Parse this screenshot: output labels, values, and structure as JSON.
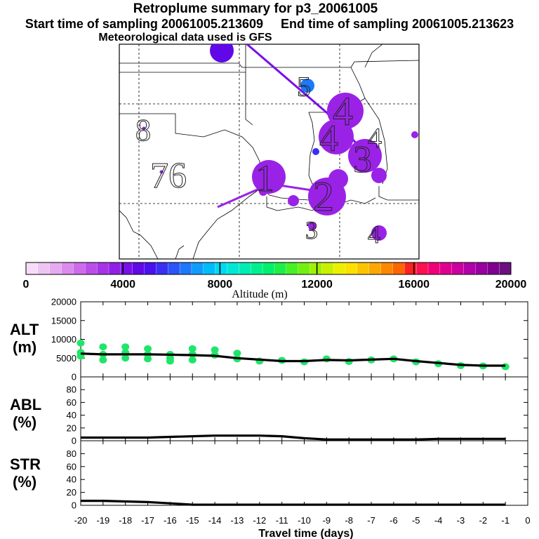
{
  "titles": {
    "line1": "Retroplume summary for p3_20061005",
    "line2_start": "Start time of sampling 20061005.213609",
    "line2_end": "End time of sampling 20061005.213623",
    "line3": "Meteorological data used is GFS"
  },
  "colorbar": {
    "ticks": [
      "0",
      "4000",
      "8000",
      "12000",
      "16000",
      "20000"
    ],
    "label": "Altitude (m)",
    "colors": [
      "#f7dcf7",
      "#eec4f2",
      "#e5aaef",
      "#da8cec",
      "#cc6cea",
      "#bb4ee8",
      "#a733e6",
      "#9020e6",
      "#7a10e8",
      "#6008e8",
      "#4a10ee",
      "#3a30f4",
      "#2a55f8",
      "#1d78fb",
      "#109cfc",
      "#00bcfb",
      "#00d9f3",
      "#00e8d5",
      "#00eeb3",
      "#00f090",
      "#00f06c",
      "#1cf048",
      "#48f025",
      "#74f010",
      "#a0f005",
      "#c8f000",
      "#ecf000",
      "#fce000",
      "#fcc400",
      "#fca800",
      "#fc8800",
      "#fc6600",
      "#fc2020",
      "#fc1050",
      "#f00078",
      "#e00090",
      "#cc00a0",
      "#b000a8",
      "#9800a0",
      "#800090",
      "#6c1080"
    ]
  },
  "map": {
    "labels": [
      "5",
      "4",
      "4",
      "3",
      "4",
      "8",
      "76",
      "1",
      "2",
      "3",
      "4"
    ],
    "point_color": "#8a14e6"
  },
  "chart_data": [
    {
      "type": "line",
      "name": "ALT",
      "ylabel": "ALT\n(m)",
      "ylabel_line1": "ALT",
      "ylabel_line2": "(m)",
      "yticks": [
        "0",
        "5000",
        "10000",
        "15000",
        "20000"
      ],
      "ylim": [
        0,
        20000
      ],
      "x": [
        -20,
        -19,
        -18,
        -17,
        -16,
        -15,
        -14,
        -13,
        -12,
        -11,
        -10,
        -9,
        -8,
        -7,
        -6,
        -5,
        -4,
        -3,
        -2,
        -1
      ],
      "values": [
        6200,
        6000,
        6000,
        6000,
        5900,
        5800,
        5600,
        5000,
        4600,
        4200,
        4200,
        4500,
        4400,
        4600,
        4800,
        4200,
        3700,
        3200,
        3000,
        3000
      ],
      "scatter": {
        "color": "#1fe66a",
        "points": [
          {
            "x": -20,
            "y": 9000
          },
          {
            "x": -20,
            "y": 6500
          },
          {
            "x": -20,
            "y": 5500
          },
          {
            "x": -19,
            "y": 8000
          },
          {
            "x": -19,
            "y": 6000
          },
          {
            "x": -19,
            "y": 4500
          },
          {
            "x": -18,
            "y": 8000
          },
          {
            "x": -18,
            "y": 6500
          },
          {
            "x": -18,
            "y": 5000
          },
          {
            "x": -17,
            "y": 7500
          },
          {
            "x": -17,
            "y": 6000
          },
          {
            "x": -17,
            "y": 4800
          },
          {
            "x": -16,
            "y": 6000
          },
          {
            "x": -16,
            "y": 5000
          },
          {
            "x": -16,
            "y": 4200
          },
          {
            "x": -15,
            "y": 7500
          },
          {
            "x": -15,
            "y": 6000
          },
          {
            "x": -15,
            "y": 4500
          },
          {
            "x": -14,
            "y": 7200
          },
          {
            "x": -14,
            "y": 5800
          },
          {
            "x": -13,
            "y": 6300
          },
          {
            "x": -13,
            "y": 4800
          },
          {
            "x": -12,
            "y": 4200
          },
          {
            "x": -11,
            "y": 4400
          },
          {
            "x": -10,
            "y": 4000
          },
          {
            "x": -9,
            "y": 4800
          },
          {
            "x": -8,
            "y": 4100
          },
          {
            "x": -7,
            "y": 4500
          },
          {
            "x": -6,
            "y": 4800
          },
          {
            "x": -5,
            "y": 4000
          },
          {
            "x": -4,
            "y": 3500
          },
          {
            "x": -3,
            "y": 3000
          },
          {
            "x": -2,
            "y": 2900
          },
          {
            "x": -1,
            "y": 2700
          }
        ]
      }
    },
    {
      "type": "line",
      "name": "ABL",
      "ylabel_line1": "ABL",
      "ylabel_line2": "(%)",
      "yticks": [
        "0",
        "20",
        "40",
        "60",
        "80"
      ],
      "ylim": [
        0,
        100
      ],
      "x": [
        -20,
        -19,
        -18,
        -17,
        -16,
        -15,
        -14,
        -13,
        -12,
        -11,
        -10,
        -9,
        -8,
        -7,
        -6,
        -5,
        -4,
        -3,
        -2,
        -1
      ],
      "values": [
        5,
        5,
        5,
        5,
        6,
        7,
        8,
        8,
        8,
        7,
        4,
        2,
        2,
        2,
        2,
        2,
        3,
        3,
        3,
        3
      ]
    },
    {
      "type": "line",
      "name": "STR",
      "ylabel_line1": "STR",
      "ylabel_line2": "(%)",
      "yticks": [
        "0",
        "20",
        "40",
        "60",
        "80"
      ],
      "ylim": [
        0,
        100
      ],
      "xlabel": "Travel time (days)",
      "xticks": [
        "-20",
        "-19",
        "-18",
        "-17",
        "-16",
        "-15",
        "-14",
        "-13",
        "-12",
        "-11",
        "-10",
        "-9",
        "-8",
        "-7",
        "-6",
        "-5",
        "-4",
        "-3",
        "-2",
        "-1",
        "0"
      ],
      "x": [
        -20,
        -19,
        -18,
        -17,
        -16,
        -15,
        -14,
        -13,
        -12,
        -11,
        -10,
        -9,
        -8,
        -7,
        -6,
        -5,
        -4,
        -3,
        -2,
        -1
      ],
      "values": [
        7,
        7,
        6,
        5,
        3,
        1,
        1,
        1,
        1,
        1,
        1,
        1,
        1,
        1,
        1,
        1,
        1,
        1,
        1,
        1
      ]
    }
  ]
}
